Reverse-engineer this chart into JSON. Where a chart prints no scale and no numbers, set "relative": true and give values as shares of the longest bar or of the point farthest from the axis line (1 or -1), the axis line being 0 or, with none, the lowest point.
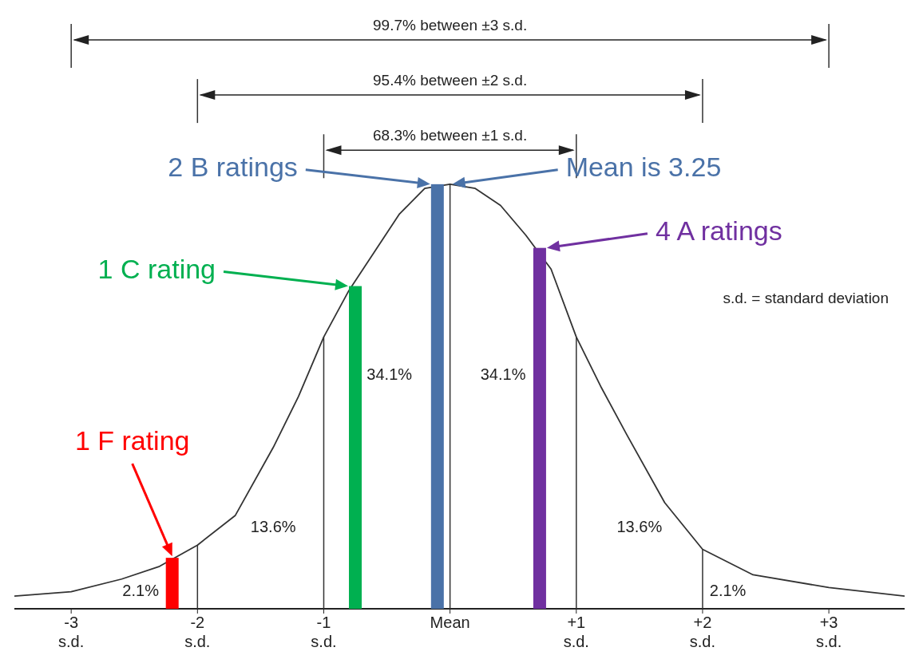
{
  "chart_data": {
    "type": "line",
    "relative": true,
    "xlim": [
      -3.45,
      3.6
    ],
    "xticks": [
      {
        "value": -3,
        "label": "-3 s.d."
      },
      {
        "value": -2,
        "label": "-2 s.d."
      },
      {
        "value": -1,
        "label": "-1 s.d."
      },
      {
        "value": 0,
        "label": "Mean"
      },
      {
        "value": 1,
        "label": "+1 s.d."
      },
      {
        "value": 2,
        "label": "+2 s.d."
      },
      {
        "value": 3,
        "label": "+3 s.d."
      }
    ],
    "series": [
      {
        "color": "#333333",
        "x": [
          -3.45,
          -3,
          -2.6,
          -2.3,
          -2,
          -1.7,
          -1.4,
          -1.2,
          -1,
          -0.8,
          -0.6,
          -0.4,
          -0.2,
          0,
          0.2,
          0.4,
          0.6,
          0.8,
          1,
          1.2,
          1.4,
          1.7,
          2,
          2.4,
          3,
          3.6
        ],
        "values": [
          0.03,
          0.04,
          0.07,
          0.1,
          0.15,
          0.22,
          0.38,
          0.5,
          0.64,
          0.75,
          0.84,
          0.93,
          0.99,
          1.0,
          0.99,
          0.95,
          0.88,
          0.8,
          0.64,
          0.52,
          0.41,
          0.25,
          0.14,
          0.08,
          0.05,
          0.03
        ]
      },
      {
        "type": "bar",
        "color": "#ff0000",
        "x": [
          -2.2
        ],
        "values": [
          0.12
        ]
      },
      {
        "type": "bar",
        "color": "#00b050",
        "x": [
          -0.75
        ],
        "values": [
          0.76
        ]
      },
      {
        "type": "bar",
        "color": "#4a72a8",
        "x": [
          -0.1
        ],
        "values": [
          1.0
        ]
      },
      {
        "type": "bar",
        "color": "#7030a0",
        "x": [
          0.71
        ],
        "values": [
          0.85
        ]
      }
    ],
    "ref_lines": [
      {
        "axis": "x",
        "value": -2,
        "color": "#333333"
      },
      {
        "axis": "x",
        "value": -1,
        "color": "#333333"
      },
      {
        "axis": "x",
        "value": 0,
        "color": "#333333"
      },
      {
        "axis": "x",
        "value": 1,
        "color": "#333333"
      },
      {
        "axis": "x",
        "value": 2,
        "color": "#333333"
      }
    ],
    "annotations": [
      "99.7% between  ±3 s.d.",
      "95.4% between  ±2 s.d.",
      "68.3% between  ±1 s.d.",
      "34.1%",
      "34.1%",
      "13.6%",
      "13.6%",
      "2.1%",
      "2.1%",
      "Mean is 3.25",
      "s.d. = standard deviation",
      "1 F rating",
      "1 C rating",
      "2 B ratings",
      "4 A ratings"
    ]
  }
}
